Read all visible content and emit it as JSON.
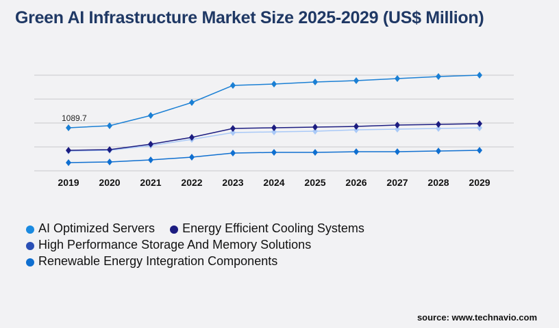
{
  "title": "Green AI Infrastructure Market Size 2025-2029 (US$ Million)",
  "source": "source: www.technavio.com",
  "chart_data": {
    "type": "line",
    "title": "Green AI Infrastructure Market Size 2025-2029 (US$ Million)",
    "categories": [
      "2019",
      "2020",
      "2021",
      "2022",
      "2023",
      "2024",
      "2025",
      "2026",
      "2027",
      "2028",
      "2029"
    ],
    "ylim": [
      0,
      2422
    ],
    "grid": true,
    "legend_position": "bottom-left",
    "annotation": "1089.7",
    "series": [
      {
        "name": "AI Optimized Servers",
        "color": "#1a7fd4",
        "legend_color": "#1a8ae0",
        "values": [
          1089.7,
          1142,
          1401,
          1730,
          2162,
          2197,
          2249,
          2284,
          2335,
          2387,
          2422
        ]
      },
      {
        "name": "Energy Efficient Cooling Systems",
        "color": "#1c1c80",
        "legend_color": "#1c1c80",
        "values": [
          519,
          536,
          675,
          848,
          1073,
          1090,
          1107,
          1124,
          1159,
          1176,
          1194
        ]
      },
      {
        "name": "High Performance Storage And Memory Solutions",
        "color": "#a9c9f7",
        "legend_color": "#2a4fb5",
        "values": [
          502,
          519,
          640,
          796,
          969,
          986,
          1003,
          1038,
          1055,
          1073,
          1090
        ]
      },
      {
        "name": "Renewable Energy Integration Components",
        "color": "#0f6fd0",
        "legend_color": "#0f6fd0",
        "values": [
          208,
          225,
          277,
          346,
          450,
          467,
          467,
          484,
          484,
          502,
          519
        ]
      }
    ]
  }
}
